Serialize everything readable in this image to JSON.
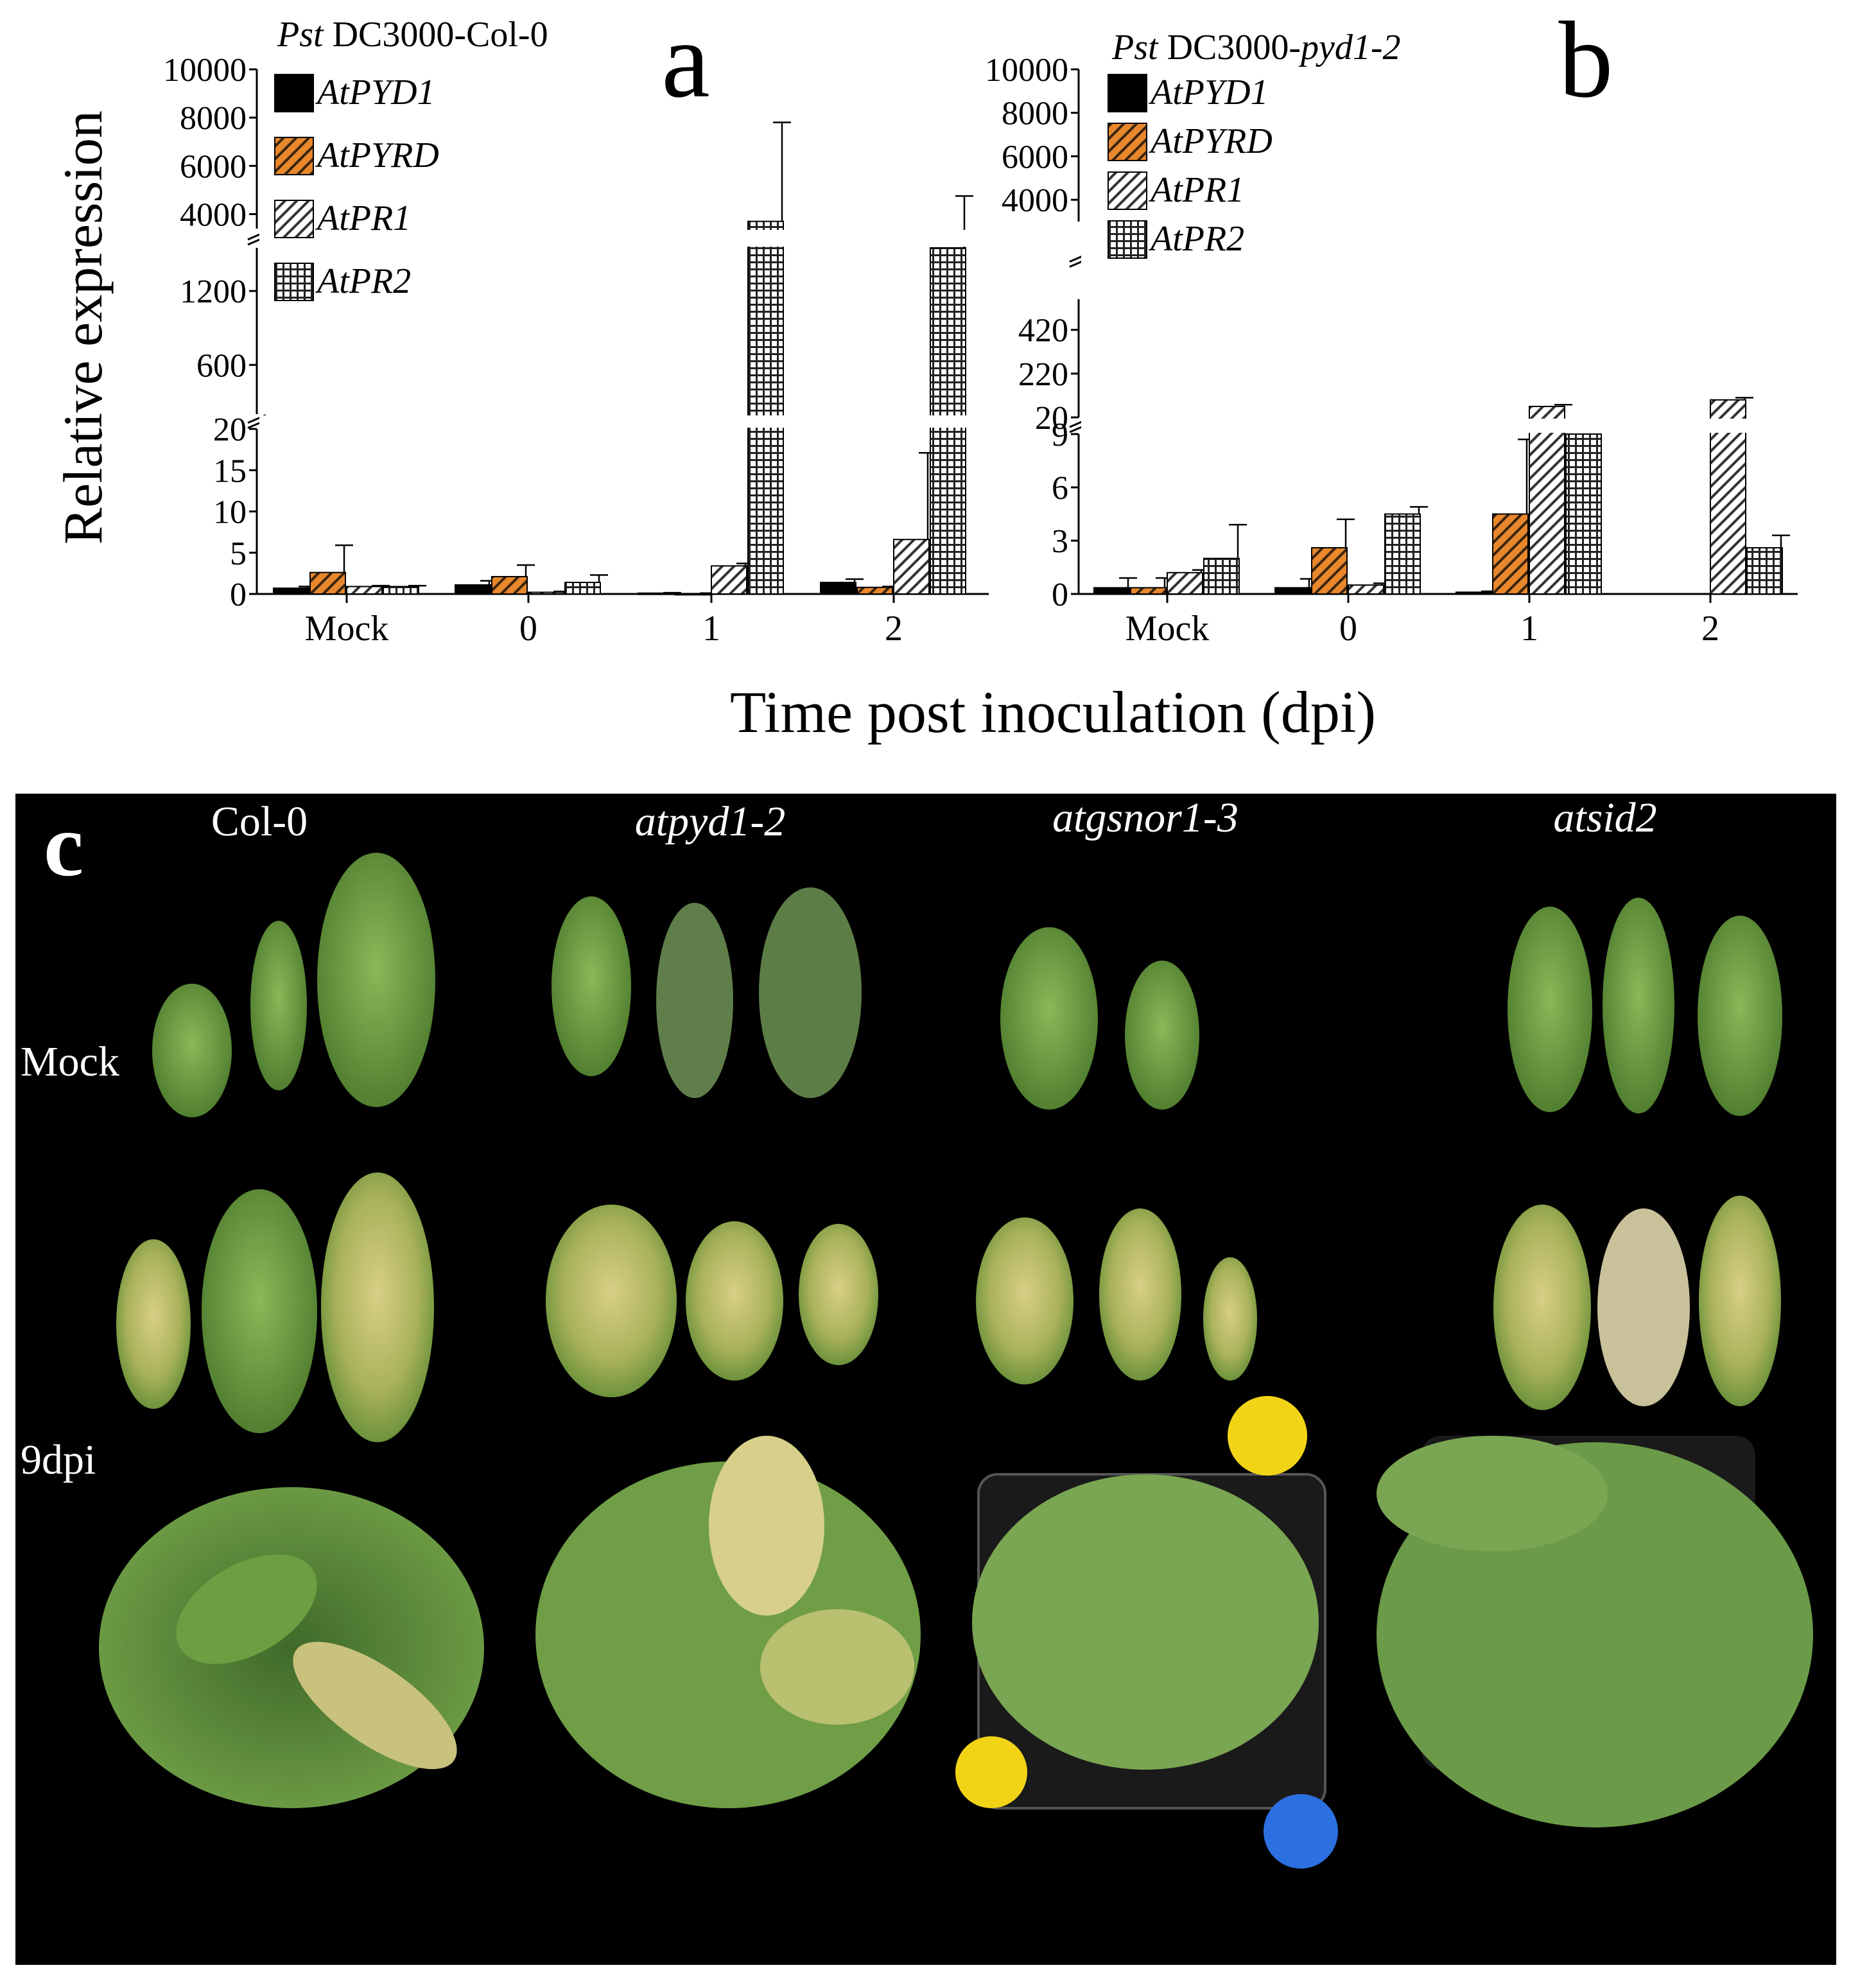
{
  "figure": {
    "y_axis_label": "Relative expression",
    "x_axis_label": "Time post inoculation (dpi)"
  },
  "legend_items": [
    {
      "label": "AtPYD1",
      "pattern": "solid",
      "color": "#000000"
    },
    {
      "label": "AtPYRD",
      "pattern": "orange-hatch",
      "color": "#E8872B"
    },
    {
      "label": "AtPR1",
      "pattern": "diagonal-hatch",
      "color": "#ffffff"
    },
    {
      "label": "AtPR2",
      "pattern": "grid",
      "color": "#ffffff"
    }
  ],
  "chart_data": [
    {
      "panel": "a",
      "type": "bar",
      "title_italic": "Pst",
      "title_rest": " DC3000-Col-0",
      "categories": [
        "Mock",
        "0",
        "1",
        "2"
      ],
      "series": [
        {
          "name": "AtPYD1",
          "values": [
            0.7,
            1.1,
            0.1,
            1.4
          ],
          "errors": [
            0.2,
            0.5,
            0.05,
            0.4
          ]
        },
        {
          "name": "AtPYRD",
          "values": [
            2.6,
            2.1,
            0.05,
            0.8
          ],
          "errors": [
            3.3,
            1.4,
            0.05,
            0.1
          ]
        },
        {
          "name": "AtPR1",
          "values": [
            0.9,
            0.2,
            3.4,
            6.6
          ],
          "errors": [
            0.1,
            0.1,
            0.3,
            10.5
          ]
        },
        {
          "name": "AtPR2",
          "values": [
            0.9,
            1.4,
            3700,
            1550
          ],
          "errors": [
            0.1,
            0.9,
            4100,
            3200
          ]
        }
      ],
      "broken_axis": [
        {
          "ticks": [
            0,
            5,
            10,
            15,
            20
          ],
          "range": [
            0,
            20
          ]
        },
        {
          "ticks": [
            600,
            1200
          ],
          "range": [
            200,
            1550
          ]
        },
        {
          "ticks": [
            4000,
            6000,
            8000,
            10000
          ],
          "range": [
            3400,
            10000
          ]
        }
      ]
    },
    {
      "panel": "b",
      "type": "bar",
      "title_italic": "Pst",
      "title_rest": " DC3000-",
      "title_italic2": "pyd1-2",
      "categories": [
        "Mock",
        "0",
        "1",
        "2"
      ],
      "series": [
        {
          "name": "AtPYD1",
          "values": [
            0.35,
            0.35,
            0.1,
            0
          ],
          "errors": [
            0.55,
            0.5,
            0.05,
            0
          ]
        },
        {
          "name": "AtPYRD",
          "values": [
            0.35,
            2.6,
            4.5,
            0
          ],
          "errors": [
            0.55,
            1.6,
            4.2,
            0
          ]
        },
        {
          "name": "AtPR1",
          "values": [
            1.2,
            0.5,
            70,
            100
          ],
          "errors": [
            0.15,
            0.1,
            8,
            10
          ]
        },
        {
          "name": "AtPR2",
          "values": [
            2.0,
            4.5,
            9,
            2.6
          ],
          "errors": [
            1.9,
            0.4,
            0,
            0.7
          ]
        }
      ],
      "broken_axis": [
        {
          "ticks": [
            0,
            3,
            6,
            9
          ],
          "range": [
            0,
            9
          ]
        },
        {
          "ticks": [
            20,
            220,
            420
          ],
          "range": [
            20,
            560
          ]
        },
        {
          "ticks": [
            4000,
            6000,
            8000,
            10000
          ],
          "range": [
            3000,
            10000
          ]
        }
      ]
    }
  ],
  "panel_labels": {
    "a": "a",
    "b": "b",
    "c": "c"
  },
  "photo_panel": {
    "columns": [
      "Col-0",
      "atpyd1-2",
      "atgsnor1-3",
      "atsid2"
    ],
    "rows": [
      "Mock",
      "9dpi"
    ]
  }
}
